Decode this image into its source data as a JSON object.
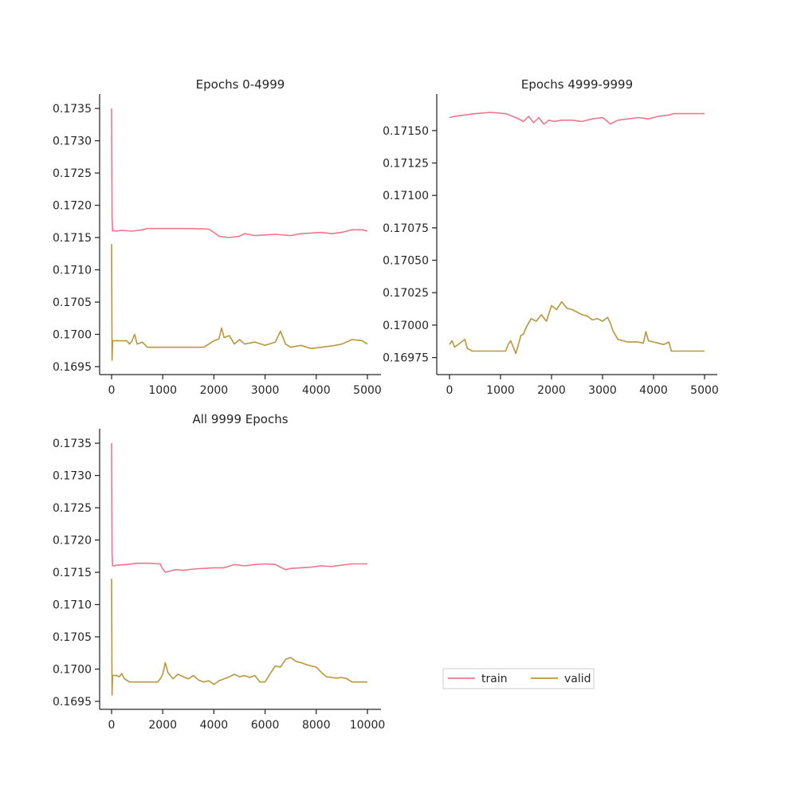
{
  "colors": {
    "train": "#f0768a",
    "valid": "#b9973a"
  },
  "legend": {
    "placement": "lower-right",
    "items": [
      {
        "key": "train",
        "label": "train"
      },
      {
        "key": "valid",
        "label": "valid"
      }
    ]
  },
  "chart_data": [
    {
      "type": "line",
      "title": "Epochs 0-4999",
      "xlim": [
        0,
        5000
      ],
      "ylim": [
        0.1695,
        0.1736
      ],
      "xticks": [
        0,
        1000,
        2000,
        3000,
        4000,
        5000
      ],
      "yticks": [
        0.1695,
        0.17,
        0.1705,
        0.171,
        0.1715,
        0.172,
        0.1725,
        0.173,
        0.1735
      ],
      "ytick_labels": [
        "0.1695",
        "0.1700",
        "0.1705",
        "0.1710",
        "0.1715",
        "0.1720",
        "0.1725",
        "0.1730",
        "0.1735"
      ],
      "series": [
        {
          "name": "train",
          "x": [
            0,
            10,
            20,
            40,
            80,
            200,
            400,
            600,
            700,
            1000,
            1500,
            1900,
            2000,
            2100,
            2300,
            2500,
            2600,
            2800,
            3000,
            3200,
            3500,
            3700,
            3900,
            4100,
            4300,
            4500,
            4700,
            4900,
            5000
          ],
          "y": [
            0.1735,
            0.1718,
            0.1716,
            0.17161,
            0.1716,
            0.17161,
            0.1716,
            0.17162,
            0.17164,
            0.17164,
            0.17164,
            0.17163,
            0.17158,
            0.17152,
            0.1715,
            0.17152,
            0.17156,
            0.17153,
            0.17154,
            0.17155,
            0.17153,
            0.17156,
            0.17157,
            0.17158,
            0.17156,
            0.17158,
            0.17162,
            0.17162,
            0.1716
          ]
        },
        {
          "name": "valid",
          "x": [
            0,
            10,
            20,
            40,
            100,
            300,
            350,
            400,
            450,
            500,
            600,
            700,
            1000,
            1500,
            1800,
            1900,
            2000,
            2100,
            2150,
            2200,
            2300,
            2400,
            2500,
            2600,
            2800,
            3000,
            3200,
            3300,
            3400,
            3500,
            3700,
            3900,
            4100,
            4300,
            4500,
            4700,
            4900,
            5000
          ],
          "y": [
            0.1714,
            0.1696,
            0.1699,
            0.1699,
            0.1699,
            0.1699,
            0.16985,
            0.1699,
            0.17,
            0.16985,
            0.16988,
            0.1698,
            0.1698,
            0.1698,
            0.1698,
            0.16985,
            0.1699,
            0.16993,
            0.1701,
            0.16995,
            0.16998,
            0.16985,
            0.16992,
            0.16985,
            0.16988,
            0.16983,
            0.16988,
            0.17005,
            0.16985,
            0.1698,
            0.16983,
            0.16978,
            0.1698,
            0.16982,
            0.16985,
            0.16992,
            0.1699,
            0.16985
          ]
        }
      ]
    },
    {
      "type": "line",
      "title": "Epochs 4999-9999",
      "xlim": [
        0,
        5000
      ],
      "ylim": [
        0.16968,
        0.17172
      ],
      "xticks": [
        0,
        1000,
        2000,
        3000,
        4000,
        5000
      ],
      "yticks": [
        0.16975,
        0.17,
        0.17025,
        0.1705,
        0.17075,
        0.171,
        0.17125,
        0.1715
      ],
      "ytick_labels": [
        "0.16975",
        "0.17000",
        "0.17025",
        "0.17050",
        "0.17075",
        "0.17100",
        "0.17125",
        "0.17150"
      ],
      "series": [
        {
          "name": "train",
          "x": [
            0,
            100,
            300,
            500,
            800,
            1100,
            1300,
            1450,
            1550,
            1650,
            1750,
            1850,
            1950,
            2050,
            2200,
            2400,
            2600,
            2800,
            3000,
            3100,
            3150,
            3300,
            3500,
            3700,
            3900,
            4100,
            4300,
            4400,
            4600,
            4800,
            5000
          ],
          "y": [
            0.1716,
            0.17161,
            0.17162,
            0.17163,
            0.17164,
            0.17163,
            0.1716,
            0.17157,
            0.17161,
            0.17156,
            0.1716,
            0.17155,
            0.17158,
            0.17157,
            0.17158,
            0.17158,
            0.17157,
            0.17159,
            0.1716,
            0.17157,
            0.17155,
            0.17158,
            0.17159,
            0.1716,
            0.17159,
            0.17161,
            0.17162,
            0.17163,
            0.17163,
            0.17163,
            0.17163
          ]
        },
        {
          "name": "valid",
          "x": [
            0,
            50,
            100,
            200,
            300,
            350,
            450,
            500,
            800,
            1000,
            1100,
            1150,
            1200,
            1300,
            1400,
            1450,
            1500,
            1600,
            1700,
            1800,
            1900,
            2000,
            2100,
            2200,
            2300,
            2400,
            2500,
            2600,
            2700,
            2800,
            2900,
            3000,
            3100,
            3150,
            3200,
            3300,
            3400,
            3500,
            3700,
            3800,
            3850,
            3900,
            4000,
            4100,
            4200,
            4300,
            4350,
            4500,
            5000
          ],
          "y": [
            0.16985,
            0.16988,
            0.16983,
            0.16986,
            0.16989,
            0.16982,
            0.1698,
            0.1698,
            0.1698,
            0.1698,
            0.1698,
            0.16985,
            0.16988,
            0.16978,
            0.16992,
            0.16993,
            0.16998,
            0.17005,
            0.17003,
            0.17008,
            0.17003,
            0.17015,
            0.17012,
            0.17018,
            0.17013,
            0.17012,
            0.1701,
            0.17008,
            0.17007,
            0.17004,
            0.17005,
            0.17003,
            0.17006,
            0.17002,
            0.16996,
            0.16989,
            0.16988,
            0.16987,
            0.16987,
            0.16986,
            0.16995,
            0.16988,
            0.16987,
            0.16986,
            0.16985,
            0.16987,
            0.1698,
            0.1698,
            0.1698
          ]
        }
      ]
    },
    {
      "type": "line",
      "title": "All 9999 Epochs",
      "xlim": [
        0,
        10000
      ],
      "ylim": [
        0.1695,
        0.1736
      ],
      "xticks": [
        0,
        2000,
        4000,
        6000,
        8000,
        10000
      ],
      "yticks": [
        0.1695,
        0.17,
        0.1705,
        0.171,
        0.1715,
        0.172,
        0.1725,
        0.173,
        0.1735
      ],
      "ytick_labels": [
        "0.1695",
        "0.1700",
        "0.1705",
        "0.1710",
        "0.1715",
        "0.1720",
        "0.1725",
        "0.1730",
        "0.1735"
      ],
      "series": [
        {
          "name": "train",
          "x": [
            0,
            20,
            40,
            80,
            200,
            600,
            1000,
            1400,
            1900,
            2000,
            2100,
            2300,
            2500,
            2800,
            3200,
            3600,
            4000,
            4400,
            4800,
            5200,
            5600,
            6000,
            6400,
            6600,
            6800,
            7000,
            7400,
            7800,
            8200,
            8600,
            9000,
            9400,
            9800,
            10000
          ],
          "y": [
            0.1735,
            0.1718,
            0.1716,
            0.1716,
            0.17161,
            0.17162,
            0.17164,
            0.17164,
            0.17163,
            0.17155,
            0.1715,
            0.17152,
            0.17154,
            0.17153,
            0.17155,
            0.17156,
            0.17157,
            0.17157,
            0.17162,
            0.1716,
            0.17162,
            0.17163,
            0.17162,
            0.17158,
            0.17154,
            0.17156,
            0.17157,
            0.17158,
            0.1716,
            0.17159,
            0.17161,
            0.17163,
            0.17163,
            0.17163
          ]
        },
        {
          "name": "valid",
          "x": [
            0,
            20,
            40,
            200,
            300,
            400,
            500,
            700,
            1000,
            1500,
            1800,
            1900,
            2000,
            2100,
            2200,
            2400,
            2600,
            2800,
            3000,
            3200,
            3400,
            3600,
            3800,
            4000,
            4200,
            4400,
            4600,
            4800,
            5000,
            5200,
            5400,
            5600,
            5800,
            6000,
            6200,
            6400,
            6600,
            6800,
            7000,
            7200,
            7400,
            7600,
            7800,
            8000,
            8200,
            8400,
            8600,
            8800,
            9000,
            9200,
            9400,
            10000
          ],
          "y": [
            0.1714,
            0.1696,
            0.1699,
            0.1699,
            0.16988,
            0.16993,
            0.16985,
            0.1698,
            0.1698,
            0.1698,
            0.1698,
            0.16985,
            0.16992,
            0.1701,
            0.16995,
            0.16985,
            0.16992,
            0.16988,
            0.16985,
            0.1699,
            0.16983,
            0.1698,
            0.16982,
            0.16976,
            0.16982,
            0.16985,
            0.16988,
            0.16992,
            0.16988,
            0.1699,
            0.16987,
            0.1699,
            0.1698,
            0.1698,
            0.16993,
            0.17005,
            0.17003,
            0.17015,
            0.17018,
            0.17012,
            0.1701,
            0.17007,
            0.17005,
            0.17003,
            0.16995,
            0.16988,
            0.16987,
            0.16986,
            0.16987,
            0.16985,
            0.1698,
            0.1698
          ]
        }
      ]
    }
  ]
}
